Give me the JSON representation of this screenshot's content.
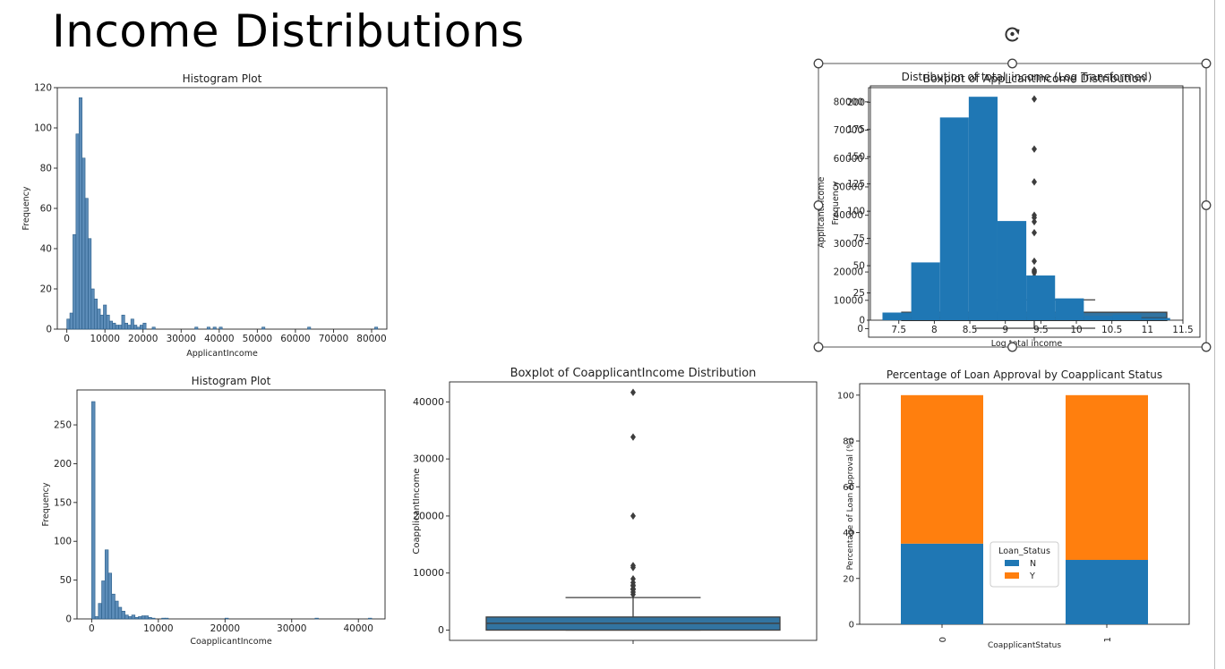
{
  "slide": {
    "title": "Income Distributions"
  },
  "colors": {
    "blue": "#1f77b4",
    "hist_blue": "#4a7fb0",
    "box_blue": "#3274a1",
    "orange": "#ff7f0e"
  },
  "selection": {
    "rotate_icon": "rotate-handle-icon"
  },
  "chart_data": [
    {
      "type": "bar",
      "subtype": "histogram",
      "title": "Histogram Plot",
      "xlabel": "ApplicantIncome",
      "ylabel": "Frequency",
      "xlim": [
        -2500,
        84000
      ],
      "ylim": [
        0,
        120
      ],
      "xticks": [
        0,
        10000,
        20000,
        30000,
        40000,
        50000,
        60000,
        70000,
        80000
      ],
      "yticks": [
        0,
        20,
        40,
        60,
        80,
        100,
        120
      ],
      "bin_width": 800,
      "bins": [
        {
          "x": 0,
          "y": 5
        },
        {
          "x": 800,
          "y": 8
        },
        {
          "x": 1600,
          "y": 47
        },
        {
          "x": 2400,
          "y": 97
        },
        {
          "x": 3200,
          "y": 115
        },
        {
          "x": 4000,
          "y": 85
        },
        {
          "x": 4800,
          "y": 65
        },
        {
          "x": 5600,
          "y": 45
        },
        {
          "x": 6400,
          "y": 20
        },
        {
          "x": 7200,
          "y": 15
        },
        {
          "x": 8000,
          "y": 10
        },
        {
          "x": 8800,
          "y": 7
        },
        {
          "x": 9600,
          "y": 12
        },
        {
          "x": 10400,
          "y": 7
        },
        {
          "x": 11200,
          "y": 4
        },
        {
          "x": 12000,
          "y": 3
        },
        {
          "x": 12800,
          "y": 2
        },
        {
          "x": 13600,
          "y": 2
        },
        {
          "x": 14400,
          "y": 7
        },
        {
          "x": 15200,
          "y": 3
        },
        {
          "x": 16000,
          "y": 2
        },
        {
          "x": 16800,
          "y": 5
        },
        {
          "x": 17600,
          "y": 2
        },
        {
          "x": 18400,
          "y": 1
        },
        {
          "x": 19200,
          "y": 2
        },
        {
          "x": 20000,
          "y": 3
        },
        {
          "x": 22400,
          "y": 1
        },
        {
          "x": 33600,
          "y": 1
        },
        {
          "x": 36800,
          "y": 1
        },
        {
          "x": 38400,
          "y": 1
        },
        {
          "x": 40000,
          "y": 1
        },
        {
          "x": 51200,
          "y": 1
        },
        {
          "x": 63200,
          "y": 1
        },
        {
          "x": 80800,
          "y": 1
        }
      ]
    },
    {
      "type": "boxplot",
      "title": "Boxplot of ApplicantIncome Distribution",
      "ylabel": "ApplicantIncome",
      "ylim": [
        -3000,
        85000
      ],
      "yticks": [
        0,
        10000,
        20000,
        30000,
        40000,
        50000,
        60000,
        70000,
        80000
      ],
      "box": {
        "whisker_low": 150,
        "q1": 2877,
        "median": 3812,
        "q3": 5795,
        "whisker_high": 10171
      },
      "outliers": [
        81000,
        63337,
        51763,
        39999,
        39147,
        37719,
        33846,
        23803,
        20667,
        20233,
        19730,
        18333,
        17500,
        16692,
        16250,
        15759,
        15000,
        14999,
        14880,
        14683,
        14583,
        13650,
        13262,
        12876,
        12841,
        12500,
        12000,
        11757,
        11500,
        11417,
        11250,
        11146,
        10833,
        10750,
        10513,
        10408
      ]
    },
    {
      "type": "bar",
      "subtype": "histogram",
      "title": "Distribution of total_income (Log Transformed)",
      "xlabel": "Log total income",
      "ylabel": "Frequency",
      "xlim": [
        7.1,
        11.5
      ],
      "ylim": [
        0,
        215
      ],
      "xticks": [
        7.5,
        8.0,
        8.5,
        9.0,
        9.5,
        10.0,
        10.5,
        11.0,
        11.5
      ],
      "yticks": [
        0,
        25,
        50,
        75,
        100,
        125,
        150,
        175,
        200
      ],
      "bin_width": 0.405,
      "bins": [
        {
          "x": 7.27,
          "y": 7
        },
        {
          "x": 7.675,
          "y": 53
        },
        {
          "x": 8.08,
          "y": 186
        },
        {
          "x": 8.485,
          "y": 205
        },
        {
          "x": 8.89,
          "y": 91
        },
        {
          "x": 9.295,
          "y": 41
        },
        {
          "x": 9.7,
          "y": 20
        },
        {
          "x": 10.105,
          "y": 4
        },
        {
          "x": 10.51,
          "y": 5
        },
        {
          "x": 10.915,
          "y": 2
        }
      ]
    },
    {
      "type": "bar",
      "subtype": "histogram",
      "title": "Histogram Plot",
      "xlabel": "CoapplicantIncome",
      "ylabel": "Frequency",
      "xlim": [
        -2200,
        44000
      ],
      "ylim": [
        0,
        295
      ],
      "xticks": [
        0,
        10000,
        20000,
        30000,
        40000
      ],
      "yticks": [
        0,
        50,
        100,
        150,
        200,
        250
      ],
      "bin_width": 500,
      "bins": [
        {
          "x": 0,
          "y": 280
        },
        {
          "x": 500,
          "y": 3
        },
        {
          "x": 1000,
          "y": 20
        },
        {
          "x": 1500,
          "y": 49
        },
        {
          "x": 2000,
          "y": 89
        },
        {
          "x": 2500,
          "y": 59
        },
        {
          "x": 3000,
          "y": 32
        },
        {
          "x": 3500,
          "y": 23
        },
        {
          "x": 4000,
          "y": 15
        },
        {
          "x": 4500,
          "y": 10
        },
        {
          "x": 5000,
          "y": 5
        },
        {
          "x": 5500,
          "y": 3
        },
        {
          "x": 6000,
          "y": 5
        },
        {
          "x": 6500,
          "y": 2
        },
        {
          "x": 7000,
          "y": 3
        },
        {
          "x": 7500,
          "y": 4
        },
        {
          "x": 8000,
          "y": 4
        },
        {
          "x": 8500,
          "y": 2
        },
        {
          "x": 9000,
          "y": 1
        },
        {
          "x": 10500,
          "y": 1
        },
        {
          "x": 11000,
          "y": 1
        },
        {
          "x": 20000,
          "y": 1
        },
        {
          "x": 33500,
          "y": 1
        },
        {
          "x": 41500,
          "y": 1
        }
      ]
    },
    {
      "type": "boxplot",
      "title": "Boxplot of CoapplicantIncome Distribution",
      "ylabel": "CoapplicantIncome",
      "ylim": [
        -1800,
        43500
      ],
      "yticks": [
        0,
        10000,
        20000,
        30000,
        40000
      ],
      "box": {
        "whisker_low": 0,
        "q1": 0,
        "median": 1188,
        "q3": 2297,
        "whisker_high": 5701
      },
      "outliers": [
        41667,
        33837,
        20000,
        11300,
        10968,
        8980,
        8333,
        7873,
        7750,
        7250,
        7210,
        7166,
        7101,
        6666,
        6250
      ]
    },
    {
      "type": "bar",
      "subtype": "stacked",
      "title": "Percentage of Loan Approval by Coapplicant Status",
      "xlabel": "CoapplicantStatus",
      "ylabel": "Percentage of Loan Approval (%)",
      "categories": [
        "0",
        "1"
      ],
      "ylim": [
        0,
        105
      ],
      "yticks": [
        0,
        20,
        40,
        60,
        80,
        100
      ],
      "legend": {
        "title": "Loan_Status",
        "placement": "lower-center"
      },
      "series": [
        {
          "name": "N",
          "values": [
            35.2,
            28.1
          ]
        },
        {
          "name": "Y",
          "values": [
            64.8,
            71.9
          ]
        }
      ]
    }
  ]
}
